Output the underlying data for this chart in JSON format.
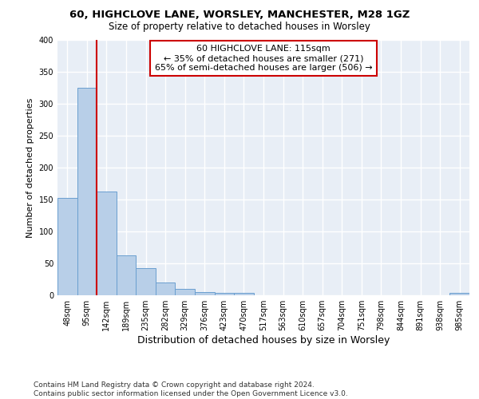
{
  "title_line1": "60, HIGHCLOVE LANE, WORSLEY, MANCHESTER, M28 1GZ",
  "title_line2": "Size of property relative to detached houses in Worsley",
  "xlabel": "Distribution of detached houses by size in Worsley",
  "ylabel": "Number of detached properties",
  "footer_line1": "Contains HM Land Registry data © Crown copyright and database right 2024.",
  "footer_line2": "Contains public sector information licensed under the Open Government Licence v3.0.",
  "annotation_line1": "60 HIGHCLOVE LANE: 115sqm",
  "annotation_line2": "← 35% of detached houses are smaller (271)",
  "annotation_line3": "65% of semi-detached houses are larger (506) →",
  "categories": [
    "48sqm",
    "95sqm",
    "142sqm",
    "189sqm",
    "235sqm",
    "282sqm",
    "329sqm",
    "376sqm",
    "423sqm",
    "470sqm",
    "517sqm",
    "563sqm",
    "610sqm",
    "657sqm",
    "704sqm",
    "751sqm",
    "798sqm",
    "844sqm",
    "891sqm",
    "938sqm",
    "985sqm"
  ],
  "values": [
    152,
    325,
    163,
    63,
    43,
    20,
    10,
    5,
    4,
    4,
    0,
    0,
    0,
    0,
    0,
    0,
    0,
    0,
    0,
    0,
    4
  ],
  "bar_color": "#b8cfe8",
  "bar_edge_color": "#6a9fd0",
  "subject_line_color": "#cc0000",
  "annotation_box_color": "#cc0000",
  "bg_color": "#e8eef6",
  "grid_color": "#ffffff",
  "ylim": [
    0,
    400
  ],
  "yticks": [
    0,
    50,
    100,
    150,
    200,
    250,
    300,
    350,
    400
  ],
  "subject_bar_index": 1,
  "title1_fontsize": 9.5,
  "title2_fontsize": 8.5,
  "ylabel_fontsize": 8,
  "xlabel_fontsize": 9,
  "tick_fontsize": 7,
  "footer_fontsize": 6.5,
  "ann_fontsize": 8
}
